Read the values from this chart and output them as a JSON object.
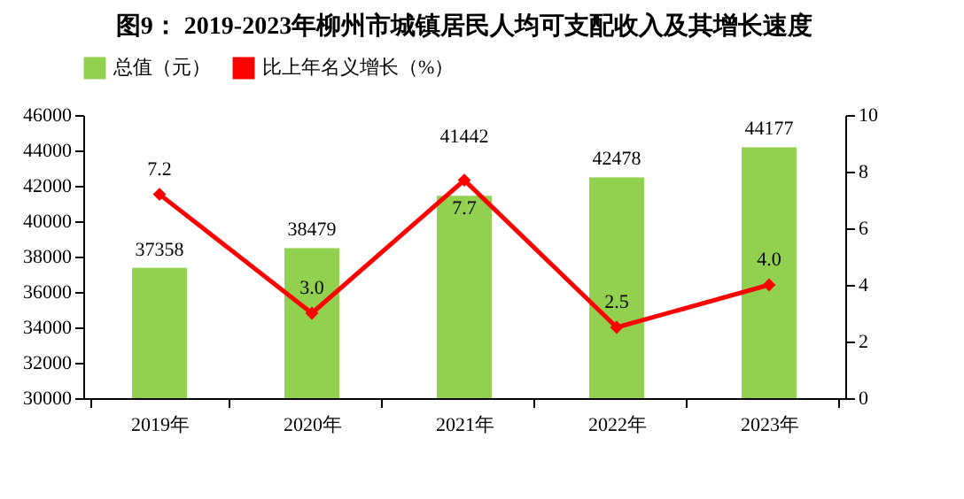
{
  "chart_data": {
    "type": "bar",
    "title": "图9： 2019-2023年柳州市城镇居民人均可支配收入及其增长速度",
    "categories": [
      "2019年",
      "2020年",
      "2021年",
      "2022年",
      "2023年"
    ],
    "series": [
      {
        "name": "总值（元）",
        "type": "bar",
        "color": "#92d050",
        "values": [
          37358,
          38479,
          41442,
          42478,
          44177
        ]
      },
      {
        "name": "比上年名义增长（%）",
        "type": "line",
        "axis": "y2",
        "color": "#ff0000",
        "values": [
          7.2,
          3.0,
          7.7,
          2.5,
          4.0
        ],
        "value_labels": [
          "7.2",
          "3.0",
          "7.7",
          "2.5",
          "4.0"
        ]
      }
    ],
    "ylim": [
      30000,
      46000
    ],
    "yticks": [
      30000,
      32000,
      34000,
      36000,
      38000,
      40000,
      42000,
      44000,
      46000
    ],
    "y2lim": [
      0,
      10
    ],
    "y2ticks": [
      0,
      2,
      4,
      6,
      8,
      10
    ],
    "data_labels": true,
    "legend": "top",
    "marker": "diamond",
    "grid": false
  }
}
